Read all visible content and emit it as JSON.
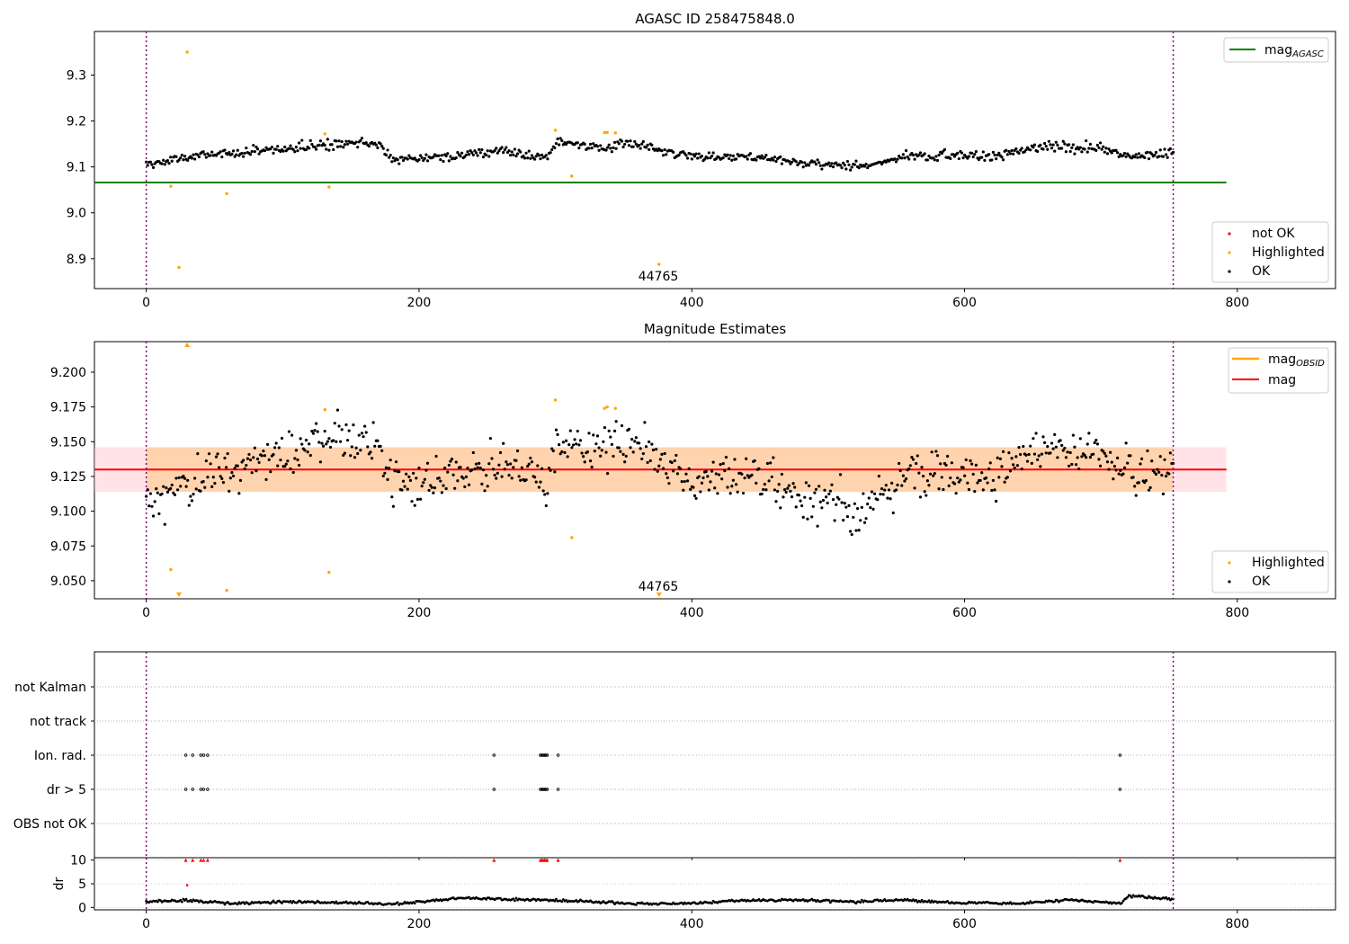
{
  "figure": {
    "obsid_label": "44765"
  },
  "chart_data": [
    {
      "type": "scatter",
      "title": "AGASC ID 258475848.0",
      "xlim": [
        -38,
        872
      ],
      "ylim": [
        8.835,
        9.395
      ],
      "x_ticks": [
        0,
        200,
        400,
        600,
        800
      ],
      "y_ticks": [
        8.9,
        9.0,
        9.1,
        9.2,
        9.3
      ],
      "y_tick_labels": [
        "8.9",
        "9.0",
        "9.1",
        "9.2",
        "9.3"
      ],
      "vlines": [
        0,
        753
      ],
      "hline": {
        "name": "mag_AGASC",
        "y": 9.066,
        "x_range": [
          -38,
          792
        ],
        "color": "#008000"
      },
      "legend_top": {
        "placement": "top-right",
        "entries": [
          {
            "name": "mag",
            "sub": "AGASC",
            "color": "#008000"
          }
        ]
      },
      "legend_bottom": {
        "placement": "bottom-right",
        "entries": [
          {
            "name": "not OK",
            "color": "#ff0000"
          },
          {
            "name": "Highlighted",
            "color": "#ffa500"
          },
          {
            "name": "OK",
            "color": "#000000"
          }
        ]
      },
      "series": [
        {
          "name": "OK",
          "color": "#000000",
          "model": "mag_top"
        },
        {
          "name": "Highlighted",
          "color": "#ffa500",
          "points": [
            [
              18,
              9.058
            ],
            [
              24,
              8.881
            ],
            [
              30,
              9.35
            ],
            [
              59,
              9.042
            ],
            [
              131,
              9.172
            ],
            [
              134,
              9.056
            ],
            [
              300,
              9.18
            ],
            [
              312,
              9.08
            ],
            [
              336,
              9.175
            ],
            [
              338,
              9.175
            ],
            [
              344,
              9.174
            ],
            [
              376,
              8.888
            ]
          ]
        }
      ]
    },
    {
      "type": "scatter",
      "title": "Magnitude Estimates",
      "xlim": [
        -38,
        872
      ],
      "ylim": [
        9.037,
        9.222
      ],
      "x_ticks": [
        0,
        200,
        400,
        600,
        800
      ],
      "y_ticks": [
        9.05,
        9.075,
        9.1,
        9.125,
        9.15,
        9.175,
        9.2
      ],
      "y_tick_labels": [
        "9.050",
        "9.075",
        "9.100",
        "9.125",
        "9.150",
        "9.175",
        "9.200"
      ],
      "vlines": [
        0,
        753
      ],
      "mag": {
        "y": 9.13,
        "x_range": [
          -38,
          792
        ],
        "color": "#ff0000"
      },
      "mag_band": {
        "y_range": [
          9.114,
          9.146
        ],
        "x_range": [
          -38,
          792
        ]
      },
      "mag_obsid_band": {
        "y_range": [
          9.114,
          9.146
        ],
        "x_range": [
          0,
          753
        ]
      },
      "legend_top": {
        "placement": "top-right",
        "entries": [
          {
            "name": "mag",
            "sub": "OBSID",
            "color": "#ffa500"
          },
          {
            "name": "mag",
            "sub": "",
            "color": "#ff0000"
          }
        ]
      },
      "legend_bottom": {
        "placement": "bottom-right",
        "entries": [
          {
            "name": "Highlighted",
            "color": "#ffa500"
          },
          {
            "name": "OK",
            "color": "#000000"
          }
        ]
      },
      "series": [
        {
          "name": "OK",
          "color": "#000000",
          "model": "mag_mid"
        },
        {
          "name": "Highlighted",
          "color": "#ffa500",
          "points": [
            [
              18,
              9.058
            ],
            [
              59,
              9.043
            ],
            [
              131,
              9.173
            ],
            [
              134,
              9.056
            ],
            [
              300,
              9.18
            ],
            [
              312,
              9.081
            ],
            [
              336,
              9.174
            ],
            [
              338,
              9.175
            ],
            [
              344,
              9.174
            ]
          ]
        },
        {
          "name": "Highlighted (out of range)",
          "color": "#ffa500",
          "marker": "triangle",
          "points": [
            [
              24,
              "low"
            ],
            [
              30,
              "high"
            ],
            [
              376,
              "low"
            ]
          ]
        }
      ]
    },
    {
      "type": "scatter",
      "title": "",
      "xlim": [
        -38,
        872
      ],
      "x_ticks": [
        0,
        200,
        400,
        600,
        800
      ],
      "vlines": [
        0,
        753
      ],
      "flag_rows": [
        "not Kalman",
        "not track",
        "Ion. rad.",
        "dr > 5",
        "OBS not OK"
      ],
      "flag_points": {
        "Ion. rad.": [
          29,
          34,
          40,
          42,
          45,
          255,
          289,
          290,
          291,
          292,
          293,
          294,
          302,
          714
        ],
        "dr > 5": [
          29,
          34,
          40,
          42,
          45,
          255,
          289,
          290,
          291,
          292,
          293,
          294,
          302,
          714
        ]
      }
    },
    {
      "type": "scatter",
      "title": "",
      "ylabel": "dr",
      "xlim": [
        -38,
        872
      ],
      "ylim": [
        -0.5,
        10.5
      ],
      "y_ticks": [
        0,
        5,
        10
      ],
      "y_tick_labels": [
        "0",
        "5",
        "10"
      ],
      "x_ticks": [
        0,
        200,
        400,
        600,
        800
      ],
      "x_tick_labels": [
        "0",
        "200",
        "400",
        "600",
        "800"
      ],
      "vlines": [
        0,
        753
      ],
      "series": [
        {
          "name": "dr",
          "color": "#000000",
          "model": "dr"
        },
        {
          "name": "dr > 10",
          "color": "#ff0000",
          "marker": "triangle",
          "points": [
            [
              29,
              10
            ],
            [
              34,
              10
            ],
            [
              40,
              10
            ],
            [
              42,
              10
            ],
            [
              45,
              10
            ],
            [
              255,
              10
            ],
            [
              289,
              10
            ],
            [
              290,
              10
            ],
            [
              291,
              10
            ],
            [
              292,
              10
            ],
            [
              293,
              10
            ],
            [
              294,
              10
            ],
            [
              302,
              10
            ],
            [
              714,
              10
            ]
          ]
        },
        {
          "name": "dr outlier",
          "color": "#ff0000",
          "points": [
            [
              30,
              4.7
            ]
          ]
        }
      ]
    }
  ]
}
